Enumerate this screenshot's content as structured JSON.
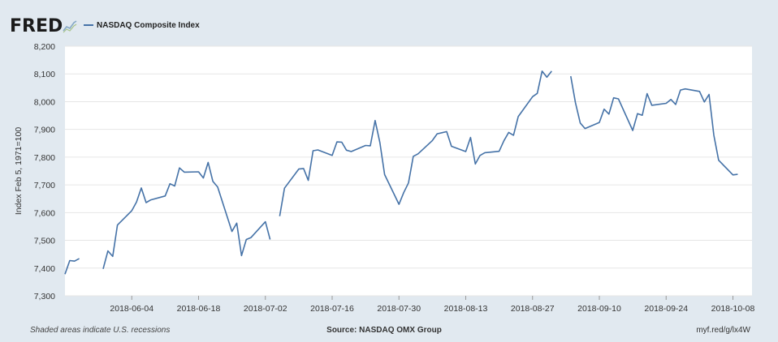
{
  "header": {
    "logo_text": "FRED",
    "logo_icon": "line-graph-icon",
    "legend_label": "NASDAQ Composite Index"
  },
  "footer": {
    "note": "Shaded areas indicate U.S. recessions",
    "source": "Source: NASDAQ OMX Group",
    "link": "myf.red/g/lx4W"
  },
  "colors": {
    "line": "#4572a7",
    "background": "#e1e9f0",
    "plot": "#ffffff",
    "grid": "#e6e6e6"
  },
  "chart_data": {
    "type": "line",
    "ylabel": "Index Feb 5, 1971=100",
    "ylim": [
      7300,
      8200
    ],
    "yticks": [
      7300,
      7400,
      7500,
      7600,
      7700,
      7800,
      7900,
      8000,
      8100,
      8200
    ],
    "ytick_labels": [
      "7,300",
      "7,400",
      "7,500",
      "7,600",
      "7,700",
      "7,800",
      "7,900",
      "8,000",
      "8,100",
      "8,200"
    ],
    "xlim": [
      "2018-05-21",
      "2018-10-12"
    ],
    "xticks": [
      "2018-06-04",
      "2018-06-18",
      "2018-07-02",
      "2018-07-16",
      "2018-07-30",
      "2018-08-13",
      "2018-08-27",
      "2018-09-10",
      "2018-09-24",
      "2018-10-08"
    ],
    "grid": true,
    "legend": "top-left",
    "series": [
      {
        "name": "NASDAQ Composite Index",
        "points": [
          [
            "2018-05-21",
            7378
          ],
          [
            "2018-05-22",
            7427
          ],
          [
            "2018-05-23",
            7425
          ],
          [
            "2018-05-24",
            7434
          ],
          [
            "2018-05-25",
            null
          ],
          [
            "2018-05-28",
            null
          ],
          [
            "2018-05-29",
            7397
          ],
          [
            "2018-05-30",
            7462
          ],
          [
            "2018-05-31",
            7442
          ],
          [
            "2018-06-01",
            7555
          ],
          [
            "2018-06-04",
            7607
          ],
          [
            "2018-06-05",
            7638
          ],
          [
            "2018-06-06",
            7689
          ],
          [
            "2018-06-07",
            7636
          ],
          [
            "2018-06-08",
            7646
          ],
          [
            "2018-06-11",
            7660
          ],
          [
            "2018-06-12",
            7704
          ],
          [
            "2018-06-13",
            7696
          ],
          [
            "2018-06-14",
            7761
          ],
          [
            "2018-06-15",
            7746
          ],
          [
            "2018-06-18",
            7747
          ],
          [
            "2018-06-19",
            7725
          ],
          [
            "2018-06-20",
            7781
          ],
          [
            "2018-06-21",
            7713
          ],
          [
            "2018-06-22",
            7692
          ],
          [
            "2018-06-25",
            7532
          ],
          [
            "2018-06-26",
            7562
          ],
          [
            "2018-06-27",
            7445
          ],
          [
            "2018-06-28",
            7503
          ],
          [
            "2018-06-29",
            7510
          ],
          [
            "2018-07-02",
            7567
          ],
          [
            "2018-07-03",
            7503
          ],
          [
            "2018-07-04",
            null
          ],
          [
            "2018-07-05",
            7587
          ],
          [
            "2018-07-06",
            7688
          ],
          [
            "2018-07-09",
            7757
          ],
          [
            "2018-07-10",
            7759
          ],
          [
            "2018-07-11",
            7716
          ],
          [
            "2018-07-12",
            7823
          ],
          [
            "2018-07-13",
            7826
          ],
          [
            "2018-07-16",
            7806
          ],
          [
            "2018-07-17",
            7855
          ],
          [
            "2018-07-18",
            7854
          ],
          [
            "2018-07-19",
            7825
          ],
          [
            "2018-07-20",
            7820
          ],
          [
            "2018-07-23",
            7842
          ],
          [
            "2018-07-24",
            7841
          ],
          [
            "2018-07-25",
            7932
          ],
          [
            "2018-07-26",
            7852
          ],
          [
            "2018-07-27",
            7737
          ],
          [
            "2018-07-30",
            7630
          ],
          [
            "2018-07-31",
            7672
          ],
          [
            "2018-08-01",
            7707
          ],
          [
            "2018-08-02",
            7803
          ],
          [
            "2018-08-03",
            7812
          ],
          [
            "2018-08-06",
            7860
          ],
          [
            "2018-08-07",
            7884
          ],
          [
            "2018-08-08",
            7888
          ],
          [
            "2018-08-09",
            7892
          ],
          [
            "2018-08-10",
            7839
          ],
          [
            "2018-08-13",
            7820
          ],
          [
            "2018-08-14",
            7871
          ],
          [
            "2018-08-15",
            7775
          ],
          [
            "2018-08-16",
            7806
          ],
          [
            "2018-08-17",
            7816
          ],
          [
            "2018-08-20",
            7821
          ],
          [
            "2018-08-21",
            7859
          ],
          [
            "2018-08-22",
            7889
          ],
          [
            "2018-08-23",
            7879
          ],
          [
            "2018-08-24",
            7946
          ],
          [
            "2018-08-27",
            8018
          ],
          [
            "2018-08-28",
            8030
          ],
          [
            "2018-08-29",
            8110
          ],
          [
            "2018-08-30",
            8088
          ],
          [
            "2018-08-31",
            8110
          ],
          [
            "2018-09-03",
            null
          ],
          [
            "2018-09-04",
            8092
          ],
          [
            "2018-09-05",
            7996
          ],
          [
            "2018-09-06",
            7923
          ],
          [
            "2018-09-07",
            7903
          ],
          [
            "2018-09-10",
            7925
          ],
          [
            "2018-09-11",
            7973
          ],
          [
            "2018-09-12",
            7955
          ],
          [
            "2018-09-13",
            8014
          ],
          [
            "2018-09-14",
            8010
          ],
          [
            "2018-09-17",
            7896
          ],
          [
            "2018-09-18",
            7957
          ],
          [
            "2018-09-19",
            7951
          ],
          [
            "2018-09-20",
            8029
          ],
          [
            "2018-09-21",
            7987
          ],
          [
            "2018-09-24",
            7994
          ],
          [
            "2018-09-25",
            8008
          ],
          [
            "2018-09-26",
            7990
          ],
          [
            "2018-09-27",
            8042
          ],
          [
            "2018-09-28",
            8046
          ],
          [
            "2018-10-01",
            8037
          ],
          [
            "2018-10-02",
            7999
          ],
          [
            "2018-10-03",
            8026
          ],
          [
            "2018-10-04",
            7879
          ],
          [
            "2018-10-05",
            7789
          ],
          [
            "2018-10-08",
            7736
          ],
          [
            "2018-10-09",
            7738
          ]
        ]
      }
    ]
  }
}
